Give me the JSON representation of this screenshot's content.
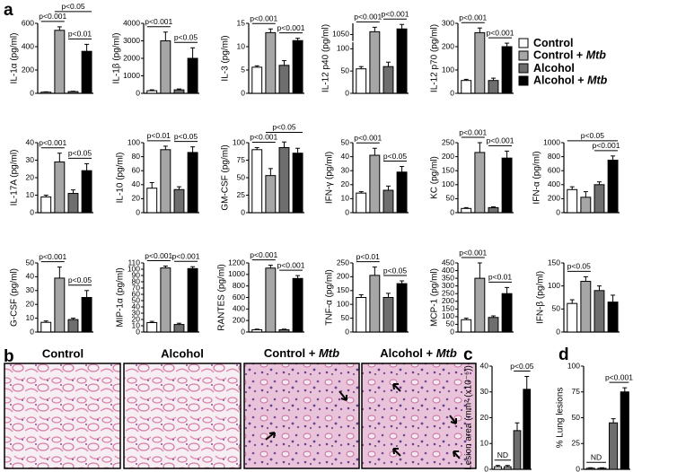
{
  "panel_labels": [
    "a",
    "b",
    "c",
    "d"
  ],
  "groups": [
    {
      "name": "Control",
      "color": "#ffffff"
    },
    {
      "name": "Control + Mtb",
      "color": "#a6a6a6"
    },
    {
      "name": "Alcohol",
      "color": "#6e6e6e"
    },
    {
      "name": "Alcohol + Mtb",
      "color": "#000000"
    }
  ],
  "histology": {
    "titles": [
      "Control",
      "Alcohol",
      "Control + Mtb",
      "Alcohol + Mtb"
    ]
  },
  "chart_data": [
    {
      "type": "bar",
      "ylabel": "IL-1α (pg/ml)",
      "values": [
        10,
        540,
        15,
        360
      ],
      "errors": [
        3,
        30,
        3,
        60
      ],
      "ylim": [
        0,
        600
      ],
      "yticks": [
        0,
        200,
        400,
        600
      ],
      "annotations": [
        {
          "label": "p<0.001",
          "between": [
            0,
            1
          ]
        },
        {
          "label": "p<0.01",
          "between": [
            2,
            3
          ]
        },
        {
          "label": "p<0.05",
          "between": [
            1,
            3
          ]
        }
      ]
    },
    {
      "type": "bar",
      "ylabel": "IL-1β (pg/ml)",
      "values": [
        150,
        3000,
        200,
        2000
      ],
      "errors": [
        50,
        500,
        50,
        600
      ],
      "ylim": [
        0,
        4000
      ],
      "yticks": [
        0,
        1000,
        2000,
        3000,
        4000
      ],
      "annotations": [
        {
          "label": "p<0.001",
          "between": [
            0,
            1
          ]
        },
        {
          "label": "p<0.05",
          "between": [
            2,
            3
          ]
        }
      ]
    },
    {
      "type": "bar",
      "ylabel": "IL-3 (pg/ml)",
      "values": [
        5.6,
        13,
        6,
        11.3
      ],
      "errors": [
        0.3,
        0.8,
        1,
        0.5
      ],
      "ylim": [
        0,
        15
      ],
      "yticks": [
        0,
        5,
        10,
        15
      ],
      "annotations": [
        {
          "label": "p<0.001",
          "between": [
            0,
            1
          ]
        },
        {
          "label": "p<0.001",
          "between": [
            2,
            3
          ]
        }
      ]
    },
    {
      "type": "bar",
      "ylabel": "IL-12 p40 (pg/ml)",
      "values": [
        55,
        1055,
        60,
        1060
      ],
      "errors": [
        5,
        8,
        10,
        8
      ],
      "ylim": [
        0,
        1070
      ],
      "axis_break": [
        110,
        1040
      ],
      "yticks": [
        0,
        50,
        100,
        1050
      ],
      "annotations": [
        {
          "label": "p<0.001",
          "between": [
            0,
            1
          ]
        },
        {
          "label": "p<0.001",
          "between": [
            2,
            3
          ]
        }
      ]
    },
    {
      "type": "bar",
      "ylabel": "IL-12 p70 (pg/ml)",
      "values": [
        55,
        260,
        55,
        200
      ],
      "errors": [
        5,
        20,
        10,
        15
      ],
      "ylim": [
        0,
        300
      ],
      "yticks": [
        0,
        100,
        200,
        300
      ],
      "annotations": [
        {
          "label": "p<0.001",
          "between": [
            0,
            1
          ]
        },
        {
          "label": "p<0.001",
          "between": [
            2,
            3
          ]
        }
      ]
    },
    {
      "type": "bar",
      "ylabel": "IL-17A (pg/ml)",
      "values": [
        9,
        29,
        11,
        24
      ],
      "errors": [
        1,
        5,
        2,
        4
      ],
      "ylim": [
        0,
        40
      ],
      "yticks": [
        0,
        10,
        20,
        30,
        40
      ],
      "annotations": [
        {
          "label": "p<0.001",
          "between": [
            0,
            1
          ]
        },
        {
          "label": "p<0.05",
          "between": [
            2,
            3
          ]
        }
      ]
    },
    {
      "type": "bar",
      "ylabel": "IL-10 (pg/ml)",
      "values": [
        35,
        90,
        33,
        86
      ],
      "errors": [
        8,
        5,
        4,
        8
      ],
      "ylim": [
        0,
        100
      ],
      "yticks": [
        0,
        20,
        40,
        60,
        80,
        100
      ],
      "annotations": [
        {
          "label": "p<0.01",
          "between": [
            0,
            1
          ]
        },
        {
          "label": "p<0.05",
          "between": [
            2,
            3
          ]
        }
      ]
    },
    {
      "type": "bar",
      "ylabel": "GM-CSF (pg/ml)",
      "values": [
        90,
        53,
        93,
        85
      ],
      "errors": [
        3,
        10,
        8,
        7
      ],
      "ylim": [
        0,
        100
      ],
      "yticks": [
        0,
        25,
        50,
        75,
        100
      ],
      "annotations": [
        {
          "label": "p<0.001",
          "between": [
            0,
            1
          ]
        },
        {
          "label": "p<0.05",
          "between": [
            1,
            3
          ]
        }
      ]
    },
    {
      "type": "bar",
      "ylabel": "IFN-γ (pg/ml)",
      "values": [
        14,
        41,
        16,
        29
      ],
      "errors": [
        1,
        5,
        3,
        4
      ],
      "ylim": [
        0,
        50
      ],
      "yticks": [
        0,
        10,
        20,
        30,
        40,
        50
      ],
      "annotations": [
        {
          "label": "p<0.001",
          "between": [
            0,
            1
          ]
        },
        {
          "label": "p<0.05",
          "between": [
            2,
            3
          ]
        }
      ]
    },
    {
      "type": "bar",
      "ylabel": "KC (pg/ml)",
      "values": [
        15,
        215,
        18,
        195
      ],
      "errors": [
        3,
        35,
        3,
        25
      ],
      "ylim": [
        0,
        250
      ],
      "yticks": [
        0,
        50,
        100,
        150,
        200,
        250
      ],
      "annotations": [
        {
          "label": "p<0.001",
          "between": [
            0,
            1
          ]
        },
        {
          "label": "p<0.001",
          "between": [
            2,
            3
          ]
        }
      ]
    },
    {
      "type": "bar",
      "ylabel": "IFN-α (pg/ml)",
      "values": [
        330,
        220,
        400,
        750
      ],
      "errors": [
        40,
        80,
        40,
        60
      ],
      "ylim": [
        0,
        1000
      ],
      "yticks": [
        0,
        200,
        400,
        600,
        800,
        1000
      ],
      "annotations": [
        {
          "label": "p<0.001",
          "between": [
            2,
            3
          ]
        },
        {
          "label": "p<0.05",
          "between": [
            0,
            3
          ]
        }
      ]
    },
    {
      "type": "bar",
      "ylabel": "G-CSF (pg/ml)",
      "values": [
        7,
        39,
        9,
        25
      ],
      "errors": [
        1,
        8,
        1,
        5
      ],
      "ylim": [
        0,
        50
      ],
      "yticks": [
        0,
        10,
        20,
        30,
        40,
        50
      ],
      "annotations": [
        {
          "label": "p<0.001",
          "between": [
            0,
            1
          ]
        },
        {
          "label": "p<0.05",
          "between": [
            2,
            3
          ]
        }
      ]
    },
    {
      "type": "bar",
      "ylabel": "MIP-1α (pg/ml)",
      "values": [
        15,
        102,
        12,
        101
      ],
      "errors": [
        2,
        3,
        2,
        3
      ],
      "ylim": [
        0,
        110
      ],
      "yticks": [
        0,
        10,
        20,
        30,
        40,
        50,
        60,
        70,
        80,
        90,
        100,
        110
      ],
      "annotations": [
        {
          "label": "p<0.001",
          "between": [
            0,
            1
          ]
        },
        {
          "label": "p<0.001",
          "between": [
            2,
            3
          ]
        }
      ]
    },
    {
      "type": "bar",
      "ylabel": "RANTES (pg/ml)",
      "values": [
        40,
        1110,
        40,
        930
      ],
      "errors": [
        10,
        50,
        10,
        50
      ],
      "ylim": [
        0,
        1200
      ],
      "yticks": [
        0,
        200,
        400,
        600,
        800,
        1000,
        1200
      ],
      "annotations": [
        {
          "label": "p<0.001",
          "between": [
            0,
            1
          ]
        },
        {
          "label": "p<0.001",
          "between": [
            2,
            3
          ]
        }
      ]
    },
    {
      "type": "bar",
      "ylabel": "TNF-α (pg/ml)",
      "values": [
        125,
        205,
        125,
        175
      ],
      "errors": [
        10,
        30,
        15,
        10
      ],
      "ylim": [
        0,
        250
      ],
      "yticks": [
        0,
        50,
        100,
        150,
        200,
        250
      ],
      "annotations": [
        {
          "label": "p<0.01",
          "between": [
            0,
            1
          ]
        },
        {
          "label": "p<0.05",
          "between": [
            2,
            3
          ]
        }
      ]
    },
    {
      "type": "bar",
      "ylabel": "MCP-1 (pg/ml)",
      "values": [
        80,
        350,
        95,
        250
      ],
      "errors": [
        10,
        100,
        10,
        40
      ],
      "ylim": [
        0,
        450
      ],
      "yticks": [
        0,
        50,
        100,
        150,
        200,
        250,
        300,
        350,
        400,
        450
      ],
      "annotations": [
        {
          "label": "p<0.001",
          "between": [
            0,
            1
          ]
        },
        {
          "label": "p<0.01",
          "between": [
            2,
            3
          ]
        }
      ]
    },
    {
      "type": "bar",
      "ylabel": "IFN-β (pg/ml)",
      "values": [
        62,
        110,
        90,
        65
      ],
      "errors": [
        8,
        10,
        10,
        15
      ],
      "ylim": [
        0,
        150
      ],
      "yticks": [
        0,
        50,
        100,
        150
      ],
      "annotations": [
        {
          "label": "p<0.05",
          "between": [
            0,
            1
          ]
        }
      ]
    },
    {
      "type": "bar",
      "ylabel": "Lesion area (mm² (x10⁻⁶))",
      "values": [
        1,
        1,
        15,
        31
      ],
      "errors": [
        0.5,
        0.5,
        3,
        5
      ],
      "ylim": [
        0,
        40
      ],
      "yticks": [
        0,
        10,
        20,
        30,
        40
      ],
      "annotations": [
        {
          "label": "ND",
          "between": [
            0,
            1
          ]
        },
        {
          "label": "p<0.05",
          "between": [
            2,
            3
          ]
        }
      ]
    },
    {
      "type": "bar",
      "ylabel": "% Lung lesions",
      "values": [
        1,
        1,
        45,
        75
      ],
      "errors": [
        0.5,
        0.5,
        4,
        4
      ],
      "ylim": [
        0,
        100
      ],
      "yticks": [
        0,
        25,
        50,
        75,
        100
      ],
      "annotations": [
        {
          "label": "ND",
          "between": [
            0,
            1
          ]
        },
        {
          "label": "p<0.001",
          "between": [
            2,
            3
          ]
        }
      ]
    }
  ]
}
